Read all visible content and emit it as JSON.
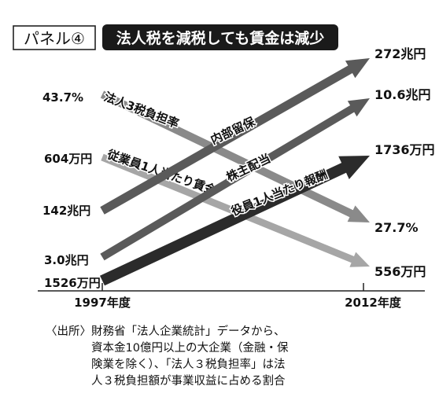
{
  "panel": {
    "label": "パネル④",
    "headline": "法人税を減税しても賃金は減少"
  },
  "chart_data": {
    "type": "line",
    "x": [
      "1997年度",
      "2012年度"
    ],
    "series": [
      {
        "name": "内部留保",
        "values": [
          142,
          272
        ],
        "start_label": "142兆円",
        "end_label": "272兆円",
        "color": "#5a5a5a"
      },
      {
        "name": "法人3税負担率",
        "values": [
          43.7,
          27.7
        ],
        "start_label": "43.7%",
        "end_label": "27.7%",
        "color": "#8a8a8a"
      },
      {
        "name": "株主配当",
        "values": [
          3.0,
          10.6
        ],
        "start_label": "3.0兆円",
        "end_label": "10.6兆円",
        "color": "#5a5a5a"
      },
      {
        "name": "従業員1人当たり賃金",
        "values": [
          604,
          556
        ],
        "start_label": "604万円",
        "end_label": "556万円",
        "color": "#a6a6a6"
      },
      {
        "name": "役員1人当たり報酬",
        "values": [
          1526,
          1736
        ],
        "start_label": "1526万円",
        "end_label": "1736万円",
        "color": "#2b2b2b"
      }
    ]
  },
  "source": {
    "lead": "〈出所〉",
    "lines": [
      "財務省「法人企業統計」データから、",
      "資本金10億円以上の大企業（金融・保",
      "険業を除く）、「法人３税負担率」は法",
      "人３税負担額が事業収益に占める割合"
    ]
  }
}
